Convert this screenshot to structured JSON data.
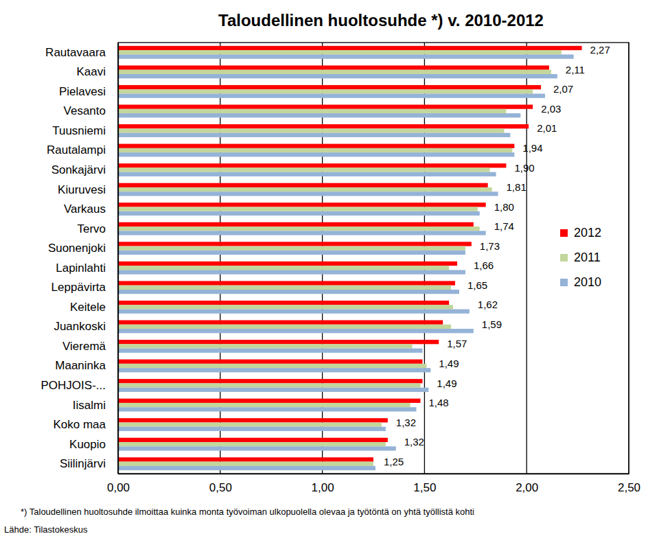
{
  "chart_data": {
    "type": "bar",
    "orientation": "horizontal",
    "title": "Taloudellinen huoltosuhde *) v. 2010-2012",
    "annotations": [
      "*) Taloudellinen huoltosuhde ilmoittaa kuinka monta työvoiman ulkopuolella olevaa ja työtöntä on yhtä työllistä kohti",
      "Lähde: Tilastokeskus"
    ],
    "categories": [
      "Rautavaara",
      "Kaavi",
      "Pielavesi",
      "Vesanto",
      "Tuusniemi",
      "Rautalampi",
      "Sonkajärvi",
      "Kiuruvesi",
      "Varkaus",
      "Tervo",
      "Suonenjoki",
      "Lapinlahti",
      "Leppävirta",
      "Keitele",
      "Juankoski",
      "Vieremä",
      "Maaninka",
      "POHJOIS-...",
      "Iisalmi",
      "Koko maa",
      "Kuopio",
      "Siilinjärvi"
    ],
    "series": [
      {
        "name": "2012",
        "color": "#ff0000",
        "values": [
          2.27,
          2.11,
          2.07,
          2.03,
          2.01,
          1.94,
          1.9,
          1.81,
          1.8,
          1.74,
          1.73,
          1.66,
          1.65,
          1.62,
          1.59,
          1.57,
          1.49,
          1.49,
          1.48,
          1.32,
          1.32,
          1.25
        ],
        "value_labels": [
          "2,27",
          "2,11",
          "2,07",
          "2,03",
          "2,01",
          "1,94",
          "1,90",
          "1,81",
          "1,80",
          "1,74",
          "1,73",
          "1,66",
          "1,65",
          "1,62",
          "1,59",
          "1,57",
          "1,49",
          "1,49",
          "1,48",
          "1,32",
          "1,32",
          "1,25"
        ]
      },
      {
        "name": "2011",
        "color": "#c3d69b",
        "values": [
          2.17,
          2.12,
          2.03,
          1.9,
          1.89,
          1.93,
          1.82,
          1.83,
          1.76,
          1.77,
          1.7,
          1.62,
          1.63,
          1.64,
          1.63,
          1.44,
          1.51,
          1.48,
          1.43,
          1.29,
          1.31,
          1.25
        ]
      },
      {
        "name": "2010",
        "color": "#95b3d7",
        "values": [
          2.23,
          2.15,
          2.09,
          1.97,
          1.92,
          1.94,
          1.85,
          1.86,
          1.77,
          1.8,
          1.7,
          1.7,
          1.67,
          1.72,
          1.74,
          1.49,
          1.53,
          1.52,
          1.46,
          1.31,
          1.36,
          1.26
        ]
      }
    ],
    "xlim": [
      0,
      2.5
    ],
    "xticks": [
      {
        "value": 0,
        "label": "0,00"
      },
      {
        "value": 0.5,
        "label": "0,50"
      },
      {
        "value": 1,
        "label": "1,00"
      },
      {
        "value": 1.5,
        "label": "1,50"
      },
      {
        "value": 2,
        "label": "2,00"
      },
      {
        "value": 2.5,
        "label": "2,50"
      }
    ],
    "grid": true,
    "legend": "right",
    "data_labels": true
  }
}
